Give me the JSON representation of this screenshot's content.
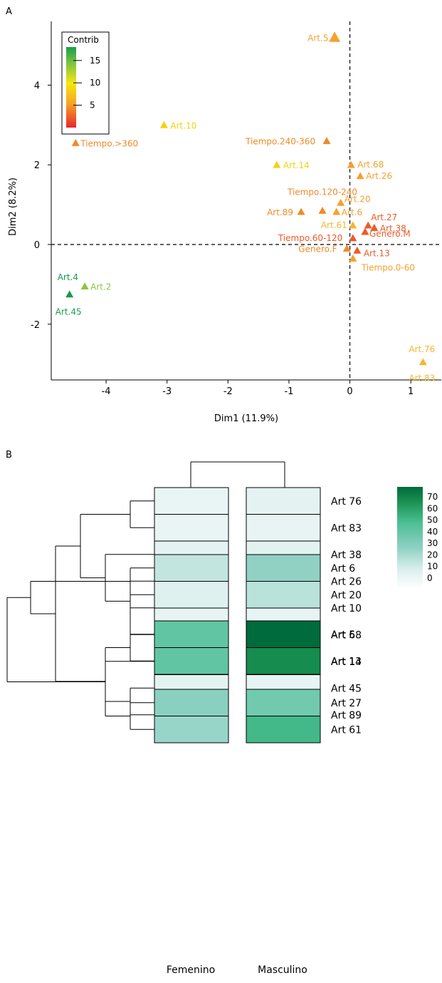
{
  "panel_a_label": "A",
  "panel_b_label": "B",
  "chart_data": [
    {
      "type": "scatter",
      "xlabel": "Dim1 (11.9%)",
      "ylabel": "Dim2 (8.2%)",
      "xlim": [
        -4.9,
        1.5
      ],
      "ylim": [
        -3.4,
        5.6
      ],
      "xticks": [
        -4,
        -3,
        -2,
        -1,
        0,
        1
      ],
      "yticks": [
        -2,
        0,
        2,
        4
      ],
      "color_legend": {
        "title": "Contrib",
        "ticks": [
          15,
          10,
          5
        ],
        "range": [
          0,
          18
        ],
        "colors": [
          "#e8262a",
          "#f5a623",
          "#f5e70f",
          "#7cc242",
          "#1b9e4b"
        ]
      },
      "points": [
        {
          "label": "Art.5",
          "x": -0.25,
          "y": 5.2,
          "contrib": 7.5,
          "color": "#f4a12e",
          "size": "large"
        },
        {
          "label": "Art.10",
          "x": -3.05,
          "y": 3.0,
          "contrib": 11,
          "color": "#f5d10f"
        },
        {
          "label": "Tiempo.>360",
          "x": -4.5,
          "y": 2.55,
          "contrib": 6,
          "color": "#f08a28"
        },
        {
          "label": "Tiempo.240-360",
          "x": -0.38,
          "y": 2.6,
          "contrib": 6,
          "color": "#f08a28"
        },
        {
          "label": "Art.14",
          "x": -1.2,
          "y": 2.0,
          "contrib": 11.5,
          "color": "#f5d10f"
        },
        {
          "label": "Art.68",
          "x": 0.02,
          "y": 2.0,
          "contrib": 7,
          "color": "#f4a12e"
        },
        {
          "label": "Art.26",
          "x": 0.17,
          "y": 1.72,
          "contrib": 7,
          "color": "#f4a12e"
        },
        {
          "label": "Tiempo.120-240",
          "x": -0.45,
          "y": 0.85,
          "contrib": 6,
          "color": "#f08a28"
        },
        {
          "label": "Art.20",
          "x": -0.15,
          "y": 1.05,
          "contrib": 7,
          "color": "#f4a12e"
        },
        {
          "label": "Art.89",
          "x": -0.8,
          "y": 0.82,
          "contrib": 6.5,
          "color": "#f08a28"
        },
        {
          "label": "Art.6",
          "x": -0.22,
          "y": 0.82,
          "contrib": 7,
          "color": "#f4a12e"
        },
        {
          "label": "Art.61",
          "x": 0.05,
          "y": 0.48,
          "contrib": 8,
          "color": "#f5b62e"
        },
        {
          "label": "Art.27",
          "x": 0.3,
          "y": 0.48,
          "contrib": 3,
          "color": "#ee5a2a"
        },
        {
          "label": "Art.38",
          "x": 0.4,
          "y": 0.42,
          "contrib": 3,
          "color": "#ee5a2a"
        },
        {
          "label": "Genero.M",
          "x": 0.25,
          "y": 0.32,
          "contrib": 3,
          "color": "#ee5a2a"
        },
        {
          "label": "Tiempo.60-120",
          "x": 0.05,
          "y": 0.16,
          "contrib": 3,
          "color": "#ee5a2a"
        },
        {
          "label": "Genero.F",
          "x": -0.05,
          "y": -0.1,
          "contrib": 6,
          "color": "#f08a28"
        },
        {
          "label": "Art.13",
          "x": 0.12,
          "y": -0.15,
          "contrib": 3.5,
          "color": "#ee5a2a"
        },
        {
          "label": "Tiempo.0-60",
          "x": 0.05,
          "y": -0.35,
          "contrib": 7,
          "color": "#f4a12e"
        },
        {
          "label": "Art.4",
          "x": -4.6,
          "y": -1.25,
          "contrib": 16,
          "color": "#1a9a4a"
        },
        {
          "label": "Art.45",
          "x": -4.6,
          "y": -1.3,
          "contrib": 16,
          "color": "#1a9a4a"
        },
        {
          "label": "Art.2",
          "x": -4.35,
          "y": -1.05,
          "contrib": 13,
          "color": "#8cc63e"
        },
        {
          "label": "Art.76",
          "x": 1.2,
          "y": -2.95,
          "contrib": 8,
          "color": "#f5b62e"
        },
        {
          "label": "Art.83",
          "x": 1.2,
          "y": -3.0,
          "contrib": 8,
          "color": "#f5b62e"
        }
      ]
    },
    {
      "type": "heatmap",
      "columns": [
        "Femenino",
        "Masculino"
      ],
      "rows": [
        {
          "label": "Art 76",
          "values": [
            0,
            2
          ]
        },
        {
          "label": "Art 83",
          "values": [
            0,
            1
          ]
        },
        {
          "label": "Art 38",
          "values": [
            2,
            3
          ]
        },
        {
          "label": "Art 26",
          "values": [
            1,
            3
          ]
        },
        {
          "label": "Art 10",
          "values": [
            1,
            1
          ]
        },
        {
          "label": "Art 68",
          "values": [
            1,
            1
          ]
        },
        {
          "label": "Art 14",
          "values": [
            4,
            3
          ]
        },
        {
          "label": "Art 45",
          "values": [
            2,
            1
          ]
        },
        {
          "label": "Art 89",
          "values": [
            2,
            1
          ]
        },
        {
          "label": "Art 6",
          "values": [
            13,
            25
          ]
        },
        {
          "label": "Art 20",
          "values": [
            5,
            15
          ]
        },
        {
          "label": "Art 5",
          "values": [
            40,
            78
          ]
        },
        {
          "label": "Art 13",
          "values": [
            40,
            67
          ]
        },
        {
          "label": "Art 27",
          "values": [
            27,
            35
          ]
        },
        {
          "label": "Art 61",
          "values": [
            23,
            50
          ]
        }
      ],
      "groups": [
        [
          0,
          8
        ],
        [
          9,
          10
        ],
        [
          11,
          12
        ],
        [
          13,
          14
        ]
      ],
      "colorbar": {
        "ticks": [
          70,
          60,
          50,
          40,
          30,
          20,
          10,
          0
        ],
        "range": [
          -10,
          78
        ]
      }
    }
  ]
}
